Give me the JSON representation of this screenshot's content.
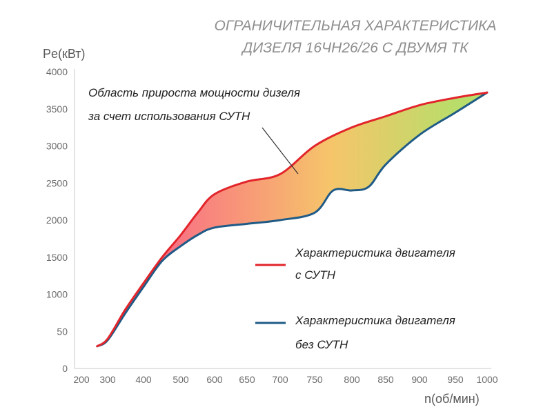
{
  "chart_data": {
    "type": "area",
    "title_lines": [
      "ОГРАНИЧИТЕЛЬНАЯ ХАРАКТЕРИСТИКА",
      "ДИЗЕЛЯ 16ЧН26/26 С ДВУМЯ ТК"
    ],
    "ylabel": "Pe(кВт)",
    "xlabel": "n(об/мин)",
    "x_tick_labels": [
      "200",
      "300",
      "400",
      "500",
      "600",
      "650",
      "700",
      "750",
      "800",
      "850",
      "900",
      "950",
      "1000"
    ],
    "y_tick_labels": [
      "0",
      "50",
      "1000",
      "1500",
      "2000",
      "2500",
      "3000",
      "3500",
      "4000"
    ],
    "annotation_lines": [
      "Область прироста мощности дизеля",
      "за счет использования СУТН"
    ],
    "series": [
      {
        "name": "Характеристика двигателя с СУТН",
        "legend_lines": [
          "Характеристика двигателя",
          "с СУТН"
        ],
        "color": "#e2252b",
        "points": [
          [
            260,
            300
          ],
          [
            300,
            400
          ],
          [
            350,
            800
          ],
          [
            400,
            1150
          ],
          [
            450,
            1500
          ],
          [
            500,
            1800
          ],
          [
            550,
            2100
          ],
          [
            600,
            2350
          ],
          [
            650,
            2520
          ],
          [
            700,
            2620
          ],
          [
            750,
            3000
          ],
          [
            800,
            3250
          ],
          [
            850,
            3400
          ],
          [
            900,
            3550
          ],
          [
            950,
            3650
          ],
          [
            1000,
            3720
          ]
        ]
      },
      {
        "name": "Характеристика двигателя без СУТН",
        "legend_lines": [
          "Характеристика двигателя",
          "без СУТН"
        ],
        "color": "#1f5b86",
        "points": [
          [
            260,
            300
          ],
          [
            300,
            380
          ],
          [
            350,
            750
          ],
          [
            400,
            1100
          ],
          [
            450,
            1450
          ],
          [
            500,
            1650
          ],
          [
            550,
            1800
          ],
          [
            600,
            1900
          ],
          [
            650,
            1950
          ],
          [
            700,
            2000
          ],
          [
            750,
            2100
          ],
          [
            775,
            2400
          ],
          [
            800,
            2400
          ],
          [
            825,
            2450
          ],
          [
            850,
            2750
          ],
          [
            900,
            3150
          ],
          [
            950,
            3450
          ],
          [
            1000,
            3720
          ]
        ]
      }
    ],
    "fill_gradient": [
      "#f96a86",
      "#f6c56a",
      "#b9dd6a"
    ]
  }
}
